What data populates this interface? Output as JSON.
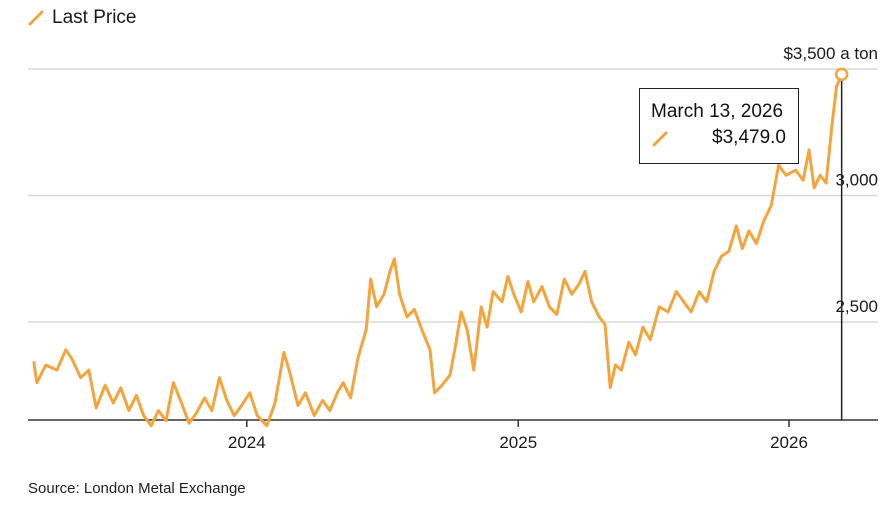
{
  "legend": {
    "label": "Last Price",
    "icon": "slash-line-icon"
  },
  "source": "Source: London Metal Exchange",
  "tooltip": {
    "date": "March 13, 2026",
    "value": "$3,479.0"
  },
  "colors": {
    "series": "#f4a43c",
    "grid": "#d9d9d9",
    "axis": "#333333",
    "text": "#1a1a1a"
  },
  "chart_data": {
    "type": "line",
    "series": [
      {
        "name": "Last Price",
        "color": "#f4a43c",
        "points": [
          [
            "2023-03-20",
            2340
          ],
          [
            "2023-03-24",
            2260
          ],
          [
            "2023-04-05",
            2330
          ],
          [
            "2023-04-20",
            2310
          ],
          [
            "2023-05-02",
            2390
          ],
          [
            "2023-05-10",
            2355
          ],
          [
            "2023-05-22",
            2280
          ],
          [
            "2023-06-02",
            2310
          ],
          [
            "2023-06-12",
            2160
          ],
          [
            "2023-06-24",
            2250
          ],
          [
            "2023-07-05",
            2180
          ],
          [
            "2023-07-15",
            2240
          ],
          [
            "2023-07-26",
            2150
          ],
          [
            "2023-08-05",
            2210
          ],
          [
            "2023-08-15",
            2130
          ],
          [
            "2023-08-25",
            2090
          ],
          [
            "2023-09-04",
            2150
          ],
          [
            "2023-09-14",
            2110
          ],
          [
            "2023-09-24",
            2260
          ],
          [
            "2023-10-05",
            2180
          ],
          [
            "2023-10-15",
            2100
          ],
          [
            "2023-10-25",
            2140
          ],
          [
            "2023-11-05",
            2200
          ],
          [
            "2023-11-15",
            2150
          ],
          [
            "2023-11-25",
            2280
          ],
          [
            "2023-12-05",
            2190
          ],
          [
            "2023-12-15",
            2130
          ],
          [
            "2023-12-25",
            2170
          ],
          [
            "2024-01-05",
            2220
          ],
          [
            "2024-01-15",
            2130
          ],
          [
            "2024-01-28",
            2090
          ],
          [
            "2024-02-08",
            2180
          ],
          [
            "2024-02-20",
            2380
          ],
          [
            "2024-02-28",
            2300
          ],
          [
            "2024-03-10",
            2170
          ],
          [
            "2024-03-20",
            2220
          ],
          [
            "2024-04-01",
            2130
          ],
          [
            "2024-04-12",
            2190
          ],
          [
            "2024-04-22",
            2150
          ],
          [
            "2024-05-02",
            2220
          ],
          [
            "2024-05-10",
            2260
          ],
          [
            "2024-05-20",
            2200
          ],
          [
            "2024-05-30",
            2360
          ],
          [
            "2024-06-10",
            2470
          ],
          [
            "2024-06-16",
            2670
          ],
          [
            "2024-06-24",
            2560
          ],
          [
            "2024-07-04",
            2610
          ],
          [
            "2024-07-12",
            2700
          ],
          [
            "2024-07-18",
            2750
          ],
          [
            "2024-07-25",
            2610
          ],
          [
            "2024-08-04",
            2520
          ],
          [
            "2024-08-14",
            2550
          ],
          [
            "2024-08-24",
            2470
          ],
          [
            "2024-09-04",
            2390
          ],
          [
            "2024-09-10",
            2220
          ],
          [
            "2024-09-20",
            2250
          ],
          [
            "2024-10-01",
            2290
          ],
          [
            "2024-10-08",
            2400
          ],
          [
            "2024-10-16",
            2540
          ],
          [
            "2024-10-24",
            2470
          ],
          [
            "2024-11-02",
            2310
          ],
          [
            "2024-11-12",
            2560
          ],
          [
            "2024-11-20",
            2480
          ],
          [
            "2024-11-28",
            2620
          ],
          [
            "2024-12-10",
            2580
          ],
          [
            "2024-12-18",
            2680
          ],
          [
            "2024-12-26",
            2610
          ],
          [
            "2025-01-05",
            2540
          ],
          [
            "2025-01-14",
            2660
          ],
          [
            "2025-01-22",
            2580
          ],
          [
            "2025-02-02",
            2640
          ],
          [
            "2025-02-12",
            2560
          ],
          [
            "2025-02-22",
            2530
          ],
          [
            "2025-03-04",
            2670
          ],
          [
            "2025-03-14",
            2610
          ],
          [
            "2025-03-24",
            2650
          ],
          [
            "2025-04-01",
            2700
          ],
          [
            "2025-04-10",
            2580
          ],
          [
            "2025-04-20",
            2520
          ],
          [
            "2025-04-28",
            2490
          ],
          [
            "2025-05-05",
            2240
          ],
          [
            "2025-05-12",
            2330
          ],
          [
            "2025-05-20",
            2310
          ],
          [
            "2025-05-30",
            2420
          ],
          [
            "2025-06-08",
            2370
          ],
          [
            "2025-06-18",
            2480
          ],
          [
            "2025-06-28",
            2430
          ],
          [
            "2025-07-10",
            2560
          ],
          [
            "2025-07-22",
            2540
          ],
          [
            "2025-08-02",
            2620
          ],
          [
            "2025-08-12",
            2580
          ],
          [
            "2025-08-22",
            2540
          ],
          [
            "2025-09-02",
            2620
          ],
          [
            "2025-09-12",
            2580
          ],
          [
            "2025-09-22",
            2700
          ],
          [
            "2025-10-02",
            2760
          ],
          [
            "2025-10-12",
            2780
          ],
          [
            "2025-10-22",
            2880
          ],
          [
            "2025-10-30",
            2790
          ],
          [
            "2025-11-08",
            2860
          ],
          [
            "2025-11-18",
            2810
          ],
          [
            "2025-11-28",
            2900
          ],
          [
            "2025-12-08",
            2960
          ],
          [
            "2025-12-18",
            3120
          ],
          [
            "2025-12-28",
            3080
          ],
          [
            "2026-01-10",
            3100
          ],
          [
            "2026-01-20",
            3060
          ],
          [
            "2026-01-28",
            3180
          ],
          [
            "2026-02-04",
            3030
          ],
          [
            "2026-02-12",
            3080
          ],
          [
            "2026-02-20",
            3050
          ],
          [
            "2026-02-28",
            3280
          ],
          [
            "2026-03-06",
            3430
          ],
          [
            "2026-03-13",
            3479
          ]
        ]
      }
    ],
    "y_ticks": [
      {
        "value": 3500,
        "label": "$3,500 a ton"
      },
      {
        "value": 3000,
        "label": "3,000"
      },
      {
        "value": 2500,
        "label": "2,500"
      }
    ],
    "x_ticks": [
      {
        "date": "2024-01-01",
        "label": "2024"
      },
      {
        "date": "2025-01-01",
        "label": "2025"
      },
      {
        "date": "2026-01-01",
        "label": "2026"
      }
    ],
    "xlim": [
      "2023-03-12",
      "2026-05-01"
    ],
    "ylim": [
      2000,
      3500
    ],
    "grid": true,
    "legend_position": "top-left",
    "highlight": {
      "date": "2026-03-13",
      "value": 3479
    }
  }
}
